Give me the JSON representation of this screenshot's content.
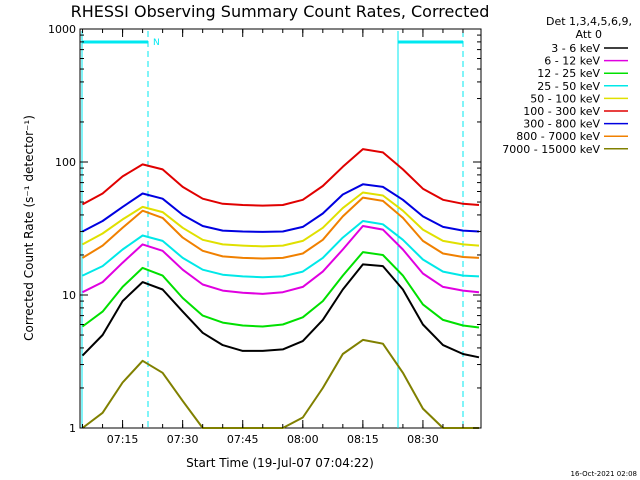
{
  "chart_data": {
    "type": "line",
    "title": "RHESSI Observing Summary Count Rates, Corrected",
    "xlabel": "Start Time (19-Jul-07 07:04:22)",
    "ylabel": "Corrected Count Rate (s⁻¹ detector⁻¹)",
    "y_scale": "log",
    "ylim": [
      1,
      1000
    ],
    "xlim": [
      "07:04:22",
      "08:44:30"
    ],
    "y_ticks": [
      "1",
      "10",
      "100",
      "1000"
    ],
    "x_ticks": [
      "07:15",
      "07:30",
      "07:45",
      "08:00",
      "08:15",
      "08:30"
    ],
    "grid": false,
    "legend_position": "right",
    "legend_header": [
      "Det 1,3,4,5,6,9,",
      "Att 0"
    ],
    "timestamp": "16-Oct-2021 02:08",
    "x": [
      "07:05",
      "07:10",
      "07:15",
      "07:20",
      "07:25",
      "07:30",
      "07:35",
      "07:40",
      "07:45",
      "07:50",
      "07:55",
      "08:00",
      "08:05",
      "08:10",
      "08:15",
      "08:20",
      "08:25",
      "08:30",
      "08:35",
      "08:40",
      "08:44"
    ],
    "series": [
      {
        "name": "3 - 6 keV",
        "color": "#000000",
        "values": [
          3.5,
          5.0,
          9.0,
          12.5,
          11.0,
          7.5,
          5.2,
          4.2,
          3.8,
          3.8,
          3.9,
          4.5,
          6.5,
          11.0,
          17.0,
          16.5,
          11.0,
          6.0,
          4.2,
          3.6,
          3.4
        ]
      },
      {
        "name": "6 - 12 keV",
        "color": "#e000e0",
        "values": [
          10.5,
          12.5,
          17.5,
          24.0,
          21.5,
          15.5,
          12.0,
          10.8,
          10.4,
          10.2,
          10.5,
          11.5,
          15.0,
          22.0,
          33.0,
          31.0,
          22.0,
          14.5,
          11.5,
          10.8,
          10.5
        ]
      },
      {
        "name": "12 - 25 keV",
        "color": "#00e000",
        "values": [
          5.8,
          7.5,
          11.5,
          16.0,
          14.0,
          9.5,
          7.0,
          6.2,
          5.9,
          5.8,
          6.0,
          6.8,
          9.0,
          14.0,
          21.0,
          20.0,
          14.0,
          8.5,
          6.5,
          5.9,
          5.7
        ]
      },
      {
        "name": "25 - 50 keV",
        "color": "#00e8e8",
        "values": [
          14.0,
          16.5,
          22.0,
          28.0,
          25.5,
          19.0,
          15.5,
          14.2,
          13.8,
          13.6,
          13.8,
          15.0,
          19.0,
          27.0,
          36.0,
          34.0,
          26.0,
          18.5,
          15.0,
          14.0,
          13.8
        ]
      },
      {
        "name": "50 - 100 keV",
        "color": "#e0e000",
        "values": [
          24.0,
          29.0,
          37.0,
          46.0,
          42.0,
          32.0,
          26.0,
          24.0,
          23.5,
          23.2,
          23.5,
          25.5,
          32.0,
          45.0,
          59.0,
          56.0,
          43.0,
          31.0,
          25.5,
          24.0,
          23.5
        ]
      },
      {
        "name": "100 - 300 keV",
        "color": "#e00000",
        "values": [
          48.0,
          58.0,
          78.0,
          96.0,
          88.0,
          65.0,
          53.0,
          48.5,
          47.5,
          47.0,
          47.5,
          52.0,
          66.0,
          92.0,
          125.0,
          118.0,
          88.0,
          63.0,
          52.0,
          48.5,
          47.5
        ]
      },
      {
        "name": "300 - 800 keV",
        "color": "#0000e0",
        "values": [
          30.0,
          36.0,
          46.0,
          58.0,
          53.0,
          40.0,
          33.0,
          30.5,
          30.0,
          29.8,
          30.0,
          32.5,
          41.0,
          57.0,
          68.0,
          65.0,
          52.0,
          39.0,
          32.5,
          30.5,
          30.0
        ]
      },
      {
        "name": "800 - 7000 keV",
        "color": "#f08000",
        "values": [
          19.0,
          23.5,
          32.0,
          43.0,
          38.0,
          27.0,
          21.5,
          19.5,
          19.0,
          18.8,
          19.0,
          20.5,
          26.0,
          39.0,
          54.0,
          51.0,
          38.0,
          25.5,
          20.5,
          19.3,
          19.0
        ]
      },
      {
        "name": "7000 - 15000 keV",
        "color": "#808000",
        "values": [
          1.0,
          1.3,
          2.2,
          3.2,
          2.6,
          1.6,
          1.0,
          1.0,
          1.0,
          1.0,
          1.0,
          1.2,
          2.0,
          3.6,
          4.6,
          4.3,
          2.6,
          1.4,
          1.0,
          1.0,
          1.0
        ]
      }
    ],
    "annotations": {
      "state_markers": [
        "N"
      ]
    }
  }
}
